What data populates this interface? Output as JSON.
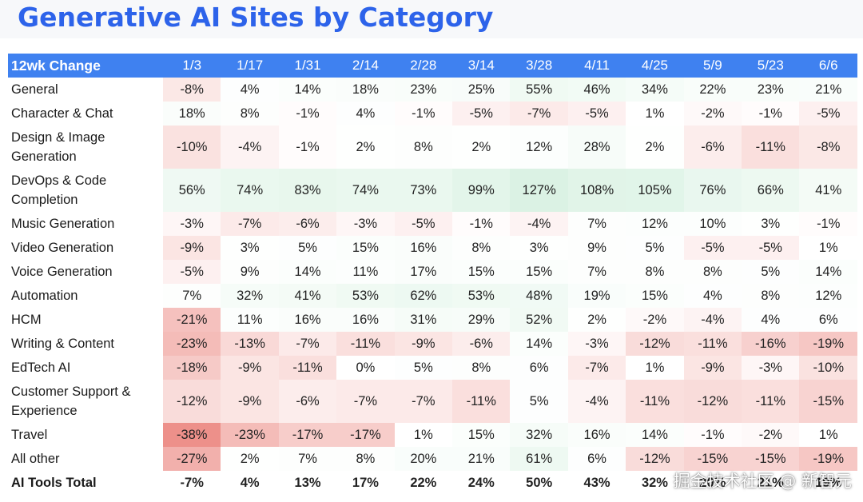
{
  "title": "Generative AI Sites by Category",
  "watermark": "掘金技术社区 @ 新智元",
  "colors": {
    "title": "#2d63ea",
    "header_bg": "#3f81f0",
    "positive": "#33b864",
    "negative": "#e0443a"
  },
  "chart_data": {
    "type": "heatmap",
    "corner_label": "12wk Change",
    "columns": [
      "1/3",
      "1/17",
      "1/31",
      "2/14",
      "2/28",
      "3/14",
      "3/28",
      "4/11",
      "4/25",
      "5/9",
      "5/23",
      "6/6"
    ],
    "unit": "%",
    "rows": [
      {
        "label": "General",
        "values": [
          -8,
          4,
          14,
          18,
          23,
          25,
          55,
          46,
          34,
          22,
          23,
          21
        ]
      },
      {
        "label": "Character & Chat",
        "values": [
          18,
          8,
          -1,
          4,
          -1,
          -5,
          -7,
          -5,
          1,
          -2,
          -1,
          -5
        ]
      },
      {
        "label": "Design & Image Generation",
        "values": [
          -10,
          -4,
          -1,
          2,
          8,
          2,
          12,
          28,
          2,
          -6,
          -11,
          -8
        ]
      },
      {
        "label": "DevOps & Code Completion",
        "values": [
          56,
          74,
          83,
          74,
          73,
          99,
          127,
          108,
          105,
          76,
          66,
          41
        ]
      },
      {
        "label": "Music Generation",
        "values": [
          -3,
          -7,
          -6,
          -3,
          -5,
          -1,
          -4,
          7,
          12,
          10,
          3,
          -1
        ]
      },
      {
        "label": "Video Generation",
        "values": [
          -9,
          3,
          5,
          15,
          16,
          8,
          3,
          9,
          5,
          -5,
          -5,
          1
        ]
      },
      {
        "label": "Voice Generation",
        "values": [
          -5,
          9,
          14,
          11,
          17,
          15,
          15,
          7,
          8,
          8,
          5,
          14
        ]
      },
      {
        "label": "Automation",
        "values": [
          7,
          32,
          41,
          53,
          62,
          53,
          48,
          19,
          15,
          4,
          8,
          12
        ]
      },
      {
        "label": "HCM",
        "values": [
          -21,
          11,
          16,
          16,
          31,
          29,
          52,
          2,
          -2,
          -4,
          4,
          6
        ]
      },
      {
        "label": "Writing & Content",
        "values": [
          -23,
          -13,
          -7,
          -11,
          -9,
          -6,
          14,
          -3,
          -12,
          -11,
          -16,
          -19
        ]
      },
      {
        "label": "EdTech AI",
        "values": [
          -18,
          -9,
          -11,
          0,
          5,
          8,
          6,
          -7,
          1,
          -9,
          -3,
          -10
        ]
      },
      {
        "label": "Customer Support & Experience",
        "values": [
          -12,
          -9,
          -6,
          -7,
          -7,
          -11,
          5,
          -4,
          -11,
          -12,
          -11,
          -15
        ]
      },
      {
        "label": "Travel",
        "values": [
          -38,
          -23,
          -17,
          -17,
          1,
          15,
          32,
          16,
          14,
          -1,
          -2,
          1
        ]
      },
      {
        "label": "All other",
        "values": [
          -27,
          2,
          7,
          8,
          20,
          21,
          61,
          6,
          -12,
          -15,
          -15,
          -19
        ]
      },
      {
        "label": "AI Tools Total",
        "values": [
          -7,
          4,
          13,
          17,
          22,
          24,
          50,
          43,
          32,
          20,
          21,
          19
        ],
        "bold": true
      }
    ]
  }
}
